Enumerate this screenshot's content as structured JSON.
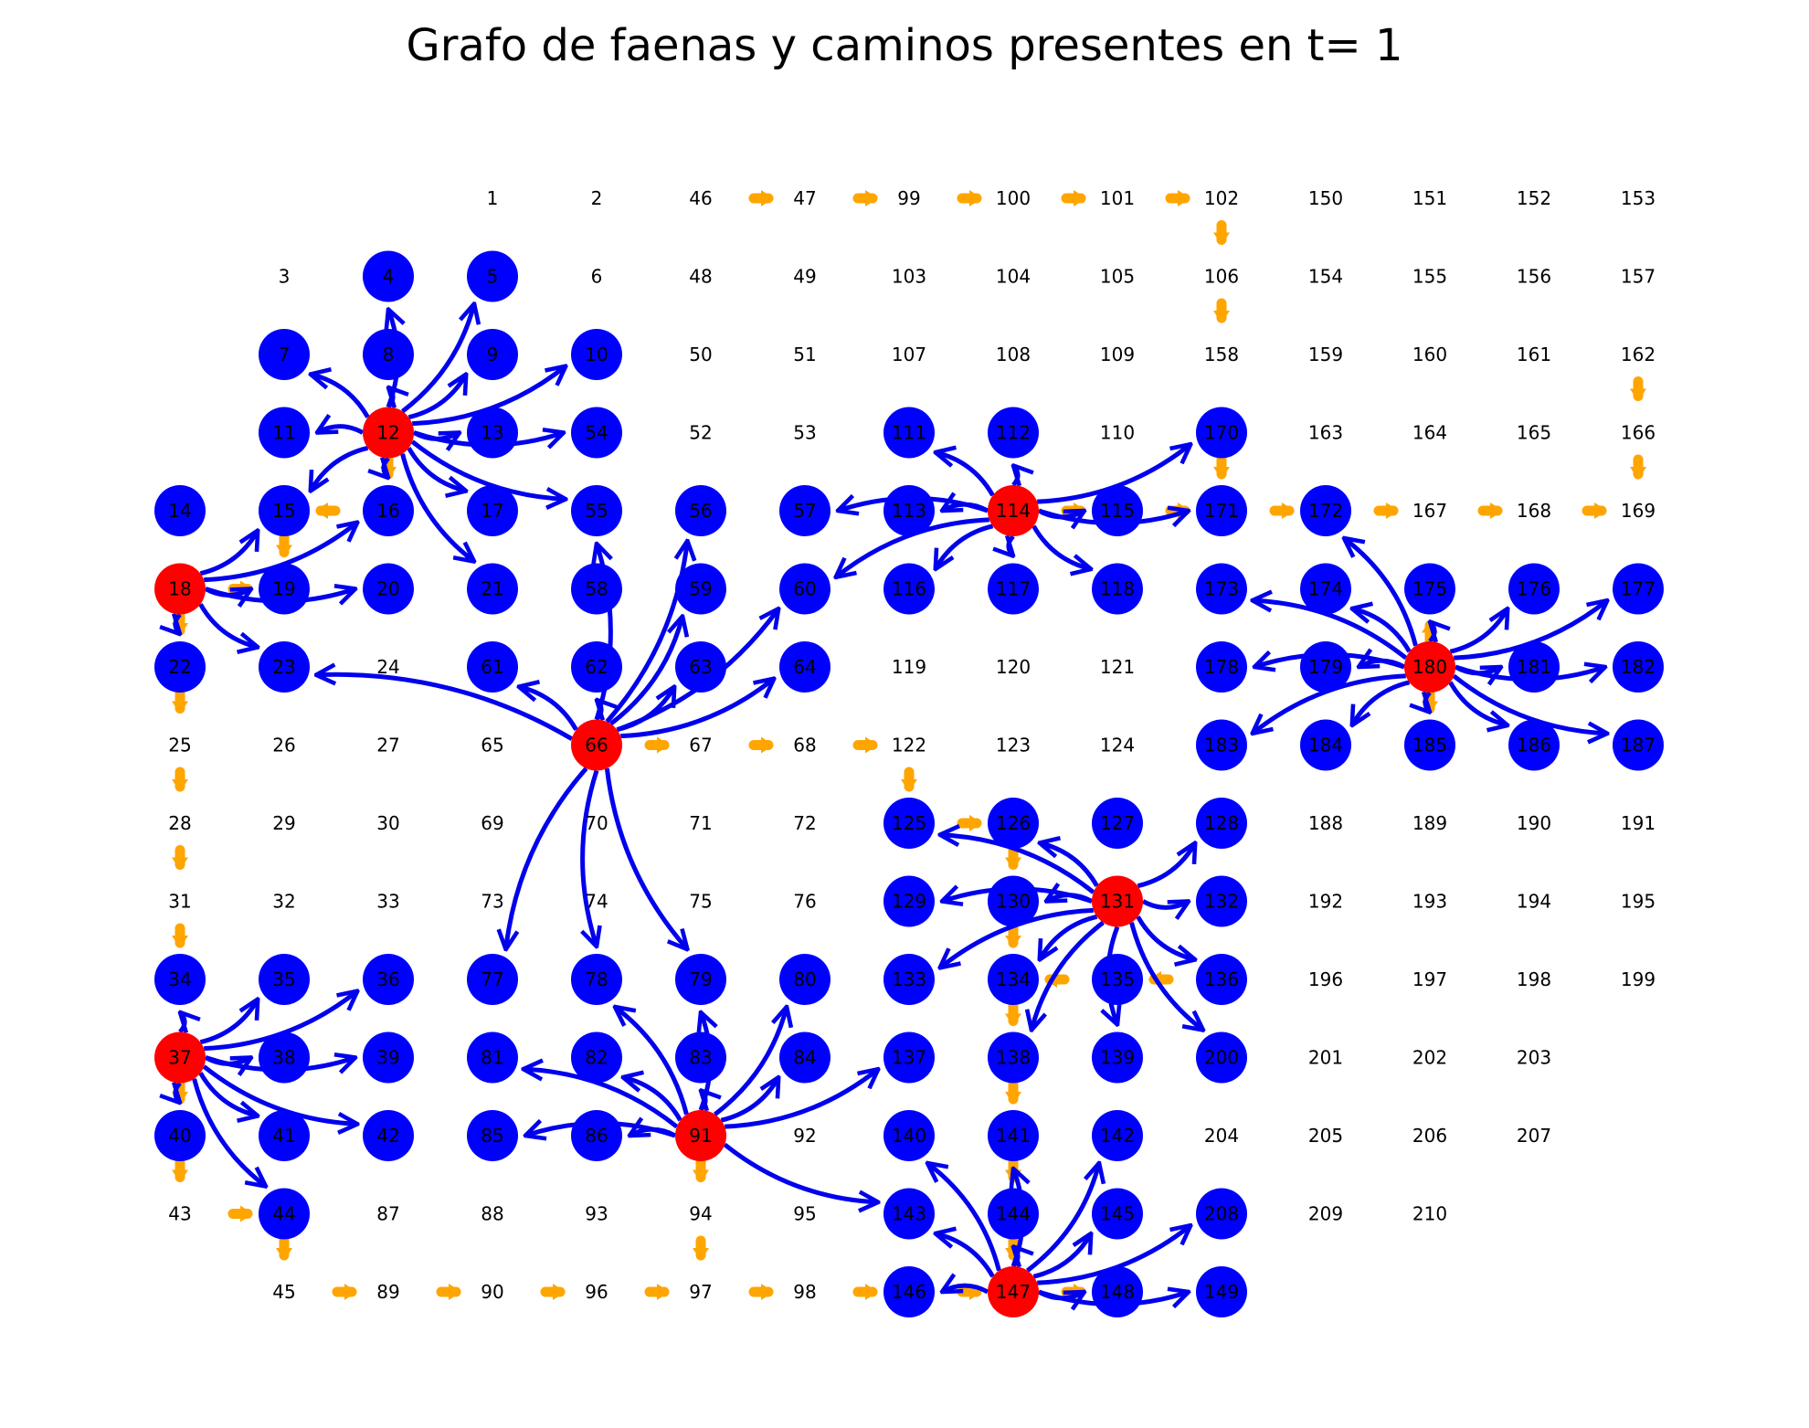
{
  "title": "Grafo de faenas y caminos presentes en t= 1",
  "colors": {
    "background": "#ffffff",
    "faena_node": "#ff0000",
    "nodo_ocupado": "#0000ff",
    "arco_camino": "#0000ee",
    "arco_camino_existente": "#ffa500",
    "text": "#000000"
  },
  "grid": {
    "rows": [
      [
        null,
        null,
        null,
        "1",
        "2",
        "46",
        "47",
        "99",
        "100",
        "101",
        "102",
        "150",
        "151",
        "152",
        "153"
      ],
      [
        null,
        "3",
        "4",
        "5",
        "6",
        "48",
        "49",
        "103",
        "104",
        "105",
        "106",
        "154",
        "155",
        "156",
        "157"
      ],
      [
        null,
        "7",
        "8",
        "9",
        "10",
        "50",
        "51",
        "107",
        "108",
        "109",
        "158",
        "159",
        "160",
        "161",
        "162"
      ],
      [
        null,
        "11",
        "12",
        "13",
        "54",
        "52",
        "53",
        "111",
        "112",
        "110",
        "170",
        "163",
        "164",
        "165",
        "166"
      ],
      [
        "14",
        "15",
        "16",
        "17",
        "55",
        "56",
        "57",
        "113",
        "114",
        "115",
        "171",
        "172",
        "167",
        "168",
        "169"
      ],
      [
        "18",
        "19",
        "20",
        "21",
        "58",
        "59",
        "60",
        "116",
        "117",
        "118",
        "173",
        "174",
        "175",
        "176",
        "177"
      ],
      [
        "22",
        "23",
        "24",
        "61",
        "62",
        "63",
        "64",
        "119",
        "120",
        "121",
        "178",
        "179",
        "180",
        "181",
        "182"
      ],
      [
        "25",
        "26",
        "27",
        "65",
        "66",
        "67",
        "68",
        "122",
        "123",
        "124",
        "183",
        "184",
        "185",
        "186",
        "187"
      ],
      [
        "28",
        "29",
        "30",
        "69",
        "70",
        "71",
        "72",
        "125",
        "126",
        "127",
        "128",
        "188",
        "189",
        "190",
        "191"
      ],
      [
        "31",
        "32",
        "33",
        "73",
        "74",
        "75",
        "76",
        "129",
        "130",
        "131",
        "132",
        "192",
        "193",
        "194",
        "195"
      ],
      [
        "34",
        "35",
        "36",
        "77",
        "78",
        "79",
        "80",
        "133",
        "134",
        "135",
        "136",
        "196",
        "197",
        "198",
        "199"
      ],
      [
        "37",
        "38",
        "39",
        "81",
        "82",
        "83",
        "84",
        "137",
        "138",
        "139",
        "200",
        "201",
        "202",
        "203",
        null
      ],
      [
        "40",
        "41",
        "42",
        "85",
        "86",
        "91",
        "92",
        "140",
        "141",
        "142",
        "204",
        "205",
        "206",
        "207",
        null
      ],
      [
        "43",
        "44",
        "87",
        "88",
        "93",
        "94",
        "95",
        "143",
        "144",
        "145",
        "208",
        "209",
        "210",
        null,
        null
      ],
      [
        null,
        "45",
        "89",
        "90",
        "96",
        "97",
        "98",
        "146",
        "147",
        "148",
        "149",
        null,
        null,
        null,
        null
      ]
    ]
  },
  "faenas": [
    "12",
    "18",
    "37",
    "66",
    "91",
    "114",
    "131",
    "147",
    "180"
  ],
  "occupied": [
    "4",
    "5",
    "7",
    "8",
    "9",
    "10",
    "11",
    "13",
    "54",
    "14",
    "15",
    "16",
    "17",
    "55",
    "56",
    "57",
    "113",
    "115",
    "171",
    "172",
    "19",
    "20",
    "21",
    "58",
    "59",
    "60",
    "116",
    "117",
    "118",
    "173",
    "174",
    "175",
    "176",
    "177",
    "22",
    "23",
    "61",
    "62",
    "63",
    "64",
    "178",
    "179",
    "181",
    "182",
    "183",
    "184",
    "185",
    "186",
    "187",
    "125",
    "126",
    "127",
    "128",
    "129",
    "130",
    "132",
    "133",
    "134",
    "135",
    "136",
    "34",
    "35",
    "36",
    "77",
    "78",
    "79",
    "80",
    "38",
    "39",
    "81",
    "82",
    "83",
    "84",
    "137",
    "138",
    "139",
    "200",
    "40",
    "41",
    "42",
    "85",
    "86",
    "140",
    "141",
    "142",
    "44",
    "143",
    "144",
    "145",
    "208",
    "146",
    "148",
    "149",
    "111",
    "112",
    "170"
  ],
  "hub_arcs": {
    "12": [
      "4",
      "5",
      "7",
      "8",
      "9",
      "10",
      "11",
      "13",
      "54",
      "15",
      "16",
      "17",
      "55",
      "21"
    ],
    "18": [
      "15",
      "16",
      "19",
      "20",
      "22",
      "23"
    ],
    "37": [
      "34",
      "35",
      "36",
      "38",
      "39",
      "40",
      "41",
      "42",
      "44"
    ],
    "66": [
      "23",
      "55",
      "56",
      "59",
      "60",
      "61",
      "62",
      "63",
      "64",
      "77",
      "78",
      "79"
    ],
    "91": [
      "78",
      "79",
      "80",
      "81",
      "82",
      "83",
      "84",
      "85",
      "86",
      "137",
      "143"
    ],
    "114": [
      "57",
      "60",
      "111",
      "112",
      "113",
      "115",
      "116",
      "117",
      "118",
      "170",
      "171"
    ],
    "131": [
      "125",
      "126",
      "128",
      "129",
      "130",
      "132",
      "133",
      "134",
      "136",
      "139",
      "138",
      "200"
    ],
    "147": [
      "140",
      "141",
      "142",
      "143",
      "144",
      "145",
      "146",
      "148",
      "149",
      "208"
    ],
    "180": [
      "172",
      "173",
      "174",
      "175",
      "176",
      "177",
      "178",
      "179",
      "181",
      "182",
      "183",
      "184",
      "185",
      "186",
      "187"
    ]
  },
  "existing_roads": [
    [
      "46",
      "47"
    ],
    [
      "47",
      "99"
    ],
    [
      "99",
      "100"
    ],
    [
      "100",
      "101"
    ],
    [
      "101",
      "102"
    ],
    [
      "102",
      "106"
    ],
    [
      "106",
      "158"
    ],
    [
      "162",
      "166"
    ],
    [
      "166",
      "169"
    ],
    [
      "168",
      "169"
    ],
    [
      "167",
      "168"
    ],
    [
      "172",
      "167"
    ],
    [
      "171",
      "172"
    ],
    [
      "115",
      "171"
    ],
    [
      "114",
      "115"
    ],
    [
      "170",
      "171"
    ],
    [
      "180",
      "175"
    ],
    [
      "180",
      "185"
    ],
    [
      "16",
      "15"
    ],
    [
      "15",
      "19"
    ],
    [
      "12",
      "16"
    ],
    [
      "18",
      "19"
    ],
    [
      "18",
      "22"
    ],
    [
      "22",
      "25"
    ],
    [
      "25",
      "28"
    ],
    [
      "28",
      "31"
    ],
    [
      "31",
      "34"
    ],
    [
      "37",
      "40"
    ],
    [
      "40",
      "43"
    ],
    [
      "43",
      "44"
    ],
    [
      "44",
      "45"
    ],
    [
      "45",
      "89"
    ],
    [
      "89",
      "90"
    ],
    [
      "90",
      "96"
    ],
    [
      "96",
      "97"
    ],
    [
      "97",
      "98"
    ],
    [
      "98",
      "146"
    ],
    [
      "146",
      "147"
    ],
    [
      "147",
      "148"
    ],
    [
      "66",
      "67"
    ],
    [
      "67",
      "68"
    ],
    [
      "68",
      "122"
    ],
    [
      "122",
      "125"
    ],
    [
      "125",
      "126"
    ],
    [
      "126",
      "130"
    ],
    [
      "130",
      "134"
    ],
    [
      "135",
      "134"
    ],
    [
      "136",
      "135"
    ],
    [
      "134",
      "138"
    ],
    [
      "138",
      "141"
    ],
    [
      "141",
      "144"
    ],
    [
      "144",
      "147"
    ],
    [
      "91",
      "94"
    ],
    [
      "94",
      "97"
    ]
  ]
}
